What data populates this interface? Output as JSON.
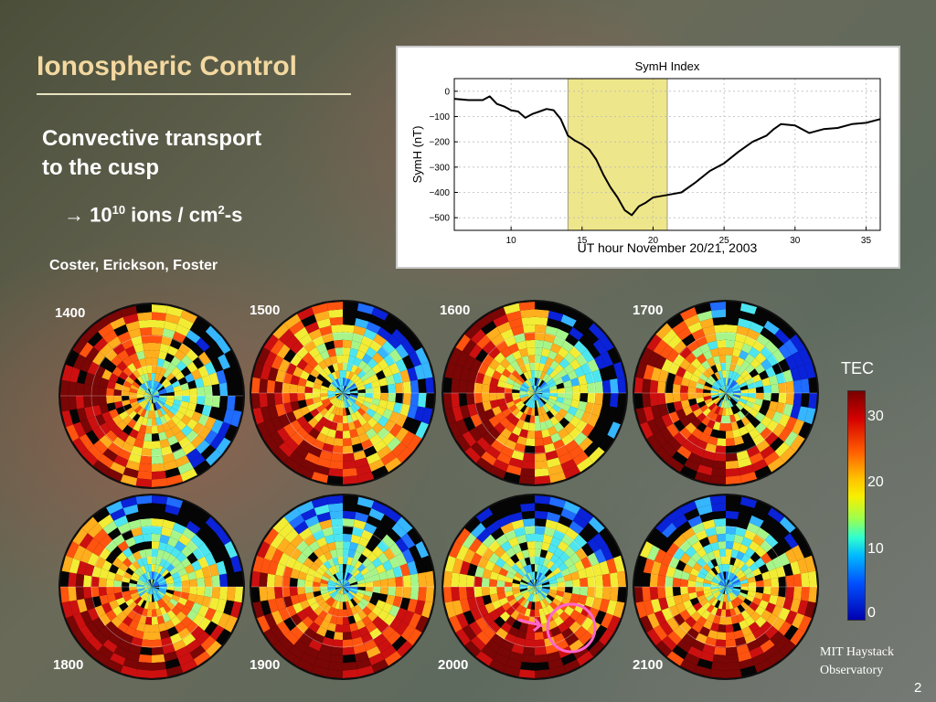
{
  "slide": {
    "title": "Ionospheric Control",
    "subhead_line1": "Convective transport",
    "subhead_line2": "to the cusp",
    "flux_arrow": "→ 10",
    "flux_exp": "10",
    "flux_units": " ions / cm",
    "flux_units_exp": "2",
    "flux_units_tail": "-s",
    "authors": "Coster, Erickson, Foster",
    "credit_line1": "MIT Haystack",
    "credit_line2": "Observatory",
    "page_number": "2"
  },
  "maps": [
    {
      "label": "1400"
    },
    {
      "label": "1500"
    },
    {
      "label": "1600"
    },
    {
      "label": "1700"
    },
    {
      "label": "1800"
    },
    {
      "label": "1900"
    },
    {
      "label": "2000"
    },
    {
      "label": "2100"
    }
  ],
  "colorbar": {
    "title": "TEC",
    "ticks": [
      "30",
      "20",
      "10",
      "0"
    ]
  },
  "chart_data": {
    "type": "line",
    "title": "SymH Index",
    "xlabel": "UT hour November 20/21, 2003",
    "ylabel": "SymH (nT)",
    "xlim": [
      6,
      36
    ],
    "ylim": [
      -550,
      50
    ],
    "xticks": [
      10,
      15,
      20,
      25,
      30,
      35
    ],
    "yticks": [
      0,
      -100,
      -200,
      -300,
      -400,
      -500
    ],
    "grid": true,
    "highlight_x_range": [
      14,
      21
    ],
    "highlight_color": "#eee68a",
    "line_color": "#000000",
    "series": [
      {
        "x": [
          6,
          7,
          8,
          8.5,
          9,
          9.5,
          10,
          10.5,
          11,
          11.5,
          12,
          12.5,
          13,
          13.5,
          14,
          14.5,
          15,
          15.5,
          16,
          16.5,
          17,
          17.5,
          18,
          18.5,
          19,
          19.5,
          20,
          20.5,
          21,
          22,
          23,
          24,
          25,
          26,
          27,
          28,
          28.5,
          29,
          30,
          31,
          32,
          33,
          34,
          35,
          36
        ],
        "y": [
          -30,
          -35,
          -35,
          -20,
          -50,
          -60,
          -75,
          -80,
          -105,
          -90,
          -80,
          -70,
          -75,
          -110,
          -175,
          -195,
          -210,
          -230,
          -270,
          -330,
          -380,
          -420,
          -470,
          -490,
          -455,
          -440,
          -420,
          -415,
          -410,
          -400,
          -360,
          -315,
          -285,
          -240,
          -200,
          -175,
          -150,
          -130,
          -135,
          -165,
          -150,
          -145,
          -130,
          -125,
          -110
        ]
      }
    ]
  }
}
